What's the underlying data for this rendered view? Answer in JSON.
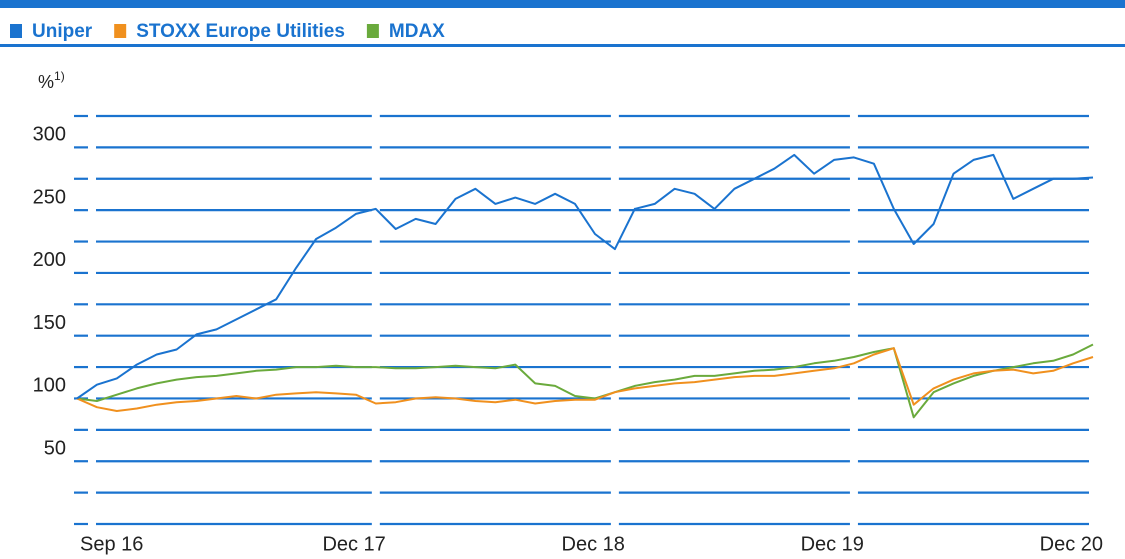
{
  "chart_data": {
    "type": "line",
    "y_label": "%",
    "y_label_note": "1)",
    "x": [
      "2016-09",
      "2016-10",
      "2016-11",
      "2016-12",
      "2017-01",
      "2017-02",
      "2017-03",
      "2017-04",
      "2017-05",
      "2017-06",
      "2017-07",
      "2017-08",
      "2017-09",
      "2017-10",
      "2017-11",
      "2017-12",
      "2018-01",
      "2018-02",
      "2018-03",
      "2018-04",
      "2018-05",
      "2018-06",
      "2018-07",
      "2018-08",
      "2018-09",
      "2018-10",
      "2018-11",
      "2018-12",
      "2019-01",
      "2019-02",
      "2019-03",
      "2019-04",
      "2019-05",
      "2019-06",
      "2019-07",
      "2019-08",
      "2019-09",
      "2019-10",
      "2019-11",
      "2019-12",
      "2020-01",
      "2020-02",
      "2020-03",
      "2020-04",
      "2020-05",
      "2020-06",
      "2020-07",
      "2020-08",
      "2020-09",
      "2020-10",
      "2020-11",
      "2020-12"
    ],
    "xlim": [
      "2016-09",
      "2020-12"
    ],
    "xticks": [
      {
        "value": "2016-09",
        "label": "Sep 16"
      },
      {
        "value": "2017-12",
        "label": "Dec 17"
      },
      {
        "value": "2018-12",
        "label": "Dec 18"
      },
      {
        "value": "2019-12",
        "label": "Dec 19"
      },
      {
        "value": "2020-12",
        "label": "Dec 20"
      }
    ],
    "series": [
      {
        "name": "Uniper",
        "color": "#1a73cf",
        "values": [
          100,
          111,
          116,
          127,
          135,
          139,
          151,
          155,
          163,
          171,
          179,
          204,
          227,
          236,
          247,
          251,
          235,
          243,
          239,
          259,
          267,
          255,
          260,
          255,
          263,
          255,
          231,
          219,
          251,
          255,
          267,
          263,
          251,
          267,
          275,
          283,
          294,
          279,
          290,
          292,
          287,
          251,
          223,
          239,
          279,
          290,
          294,
          259,
          267,
          275,
          275,
          276
        ]
      },
      {
        "name": "STOXX Europe Utilities",
        "color": "#f0901e",
        "values": [
          100,
          93,
          90,
          92,
          95,
          97,
          98,
          100,
          102,
          100,
          103,
          104,
          105,
          104,
          103,
          96,
          97,
          100,
          101,
          100,
          98,
          97,
          99,
          96,
          98,
          99,
          99,
          105,
          108,
          110,
          112,
          113,
          115,
          117,
          118,
          118,
          120,
          122,
          124,
          128,
          135,
          140,
          95,
          108,
          115,
          120,
          122,
          123,
          120,
          122,
          128,
          133
        ]
      },
      {
        "name": "MDAX",
        "color": "#6aaa3c",
        "values": [
          100,
          98,
          103,
          108,
          112,
          115,
          117,
          118,
          120,
          122,
          123,
          125,
          125,
          126,
          125,
          125,
          124,
          124,
          125,
          126,
          125,
          124,
          127,
          112,
          110,
          102,
          100,
          105,
          110,
          113,
          115,
          118,
          118,
          120,
          122,
          123,
          125,
          128,
          130,
          133,
          137,
          140,
          85,
          105,
          112,
          118,
          122,
          125,
          128,
          130,
          135,
          143
        ]
      }
    ],
    "ylim": [
      0,
      325
    ],
    "yticks": [
      50,
      100,
      150,
      200,
      250,
      300
    ],
    "minor_yticks": [
      0,
      25,
      75,
      125,
      175,
      225,
      275,
      325
    ],
    "grid": true,
    "legend": "top-left"
  }
}
